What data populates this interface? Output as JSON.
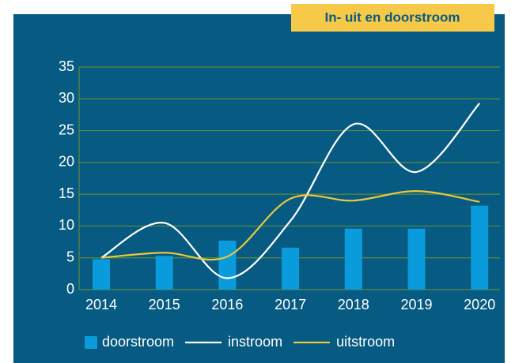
{
  "chart_data": {
    "type": "bar-line",
    "title": "In- uit en doorstroom",
    "categories": [
      "2014",
      "2015",
      "2016",
      "2017",
      "2018",
      "2019",
      "2020"
    ],
    "series": [
      {
        "name": "doorstroom",
        "type": "bar",
        "color": "#0a9bdc",
        "values": [
          4.8,
          5.3,
          7.7,
          6.6,
          9.6,
          9.6,
          13.2
        ]
      },
      {
        "name": "instroom",
        "type": "line",
        "color": "#ffffff",
        "values": [
          5,
          10.5,
          1.8,
          10.8,
          26,
          18.5,
          29.3
        ]
      },
      {
        "name": "uitstroom",
        "type": "line",
        "color": "#e8c840",
        "values": [
          5,
          5.8,
          5.2,
          14.3,
          14,
          15.5,
          13.8
        ]
      }
    ],
    "ylim": [
      0,
      35
    ],
    "yticks": [
      0,
      5,
      10,
      15,
      20,
      25,
      30,
      35
    ],
    "grid": true,
    "legend": "bottom"
  }
}
